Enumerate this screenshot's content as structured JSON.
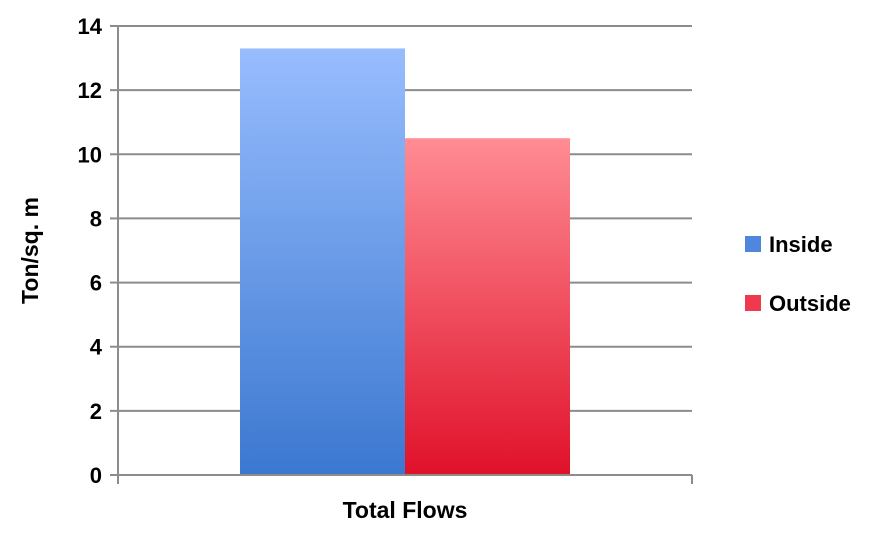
{
  "chart_data": {
    "type": "bar",
    "title": "",
    "xlabel": "",
    "ylabel": "Ton/sq. m",
    "categories": [
      "Total Flows"
    ],
    "ylim": [
      0,
      14
    ],
    "yticks": [
      0,
      2,
      4,
      6,
      8,
      10,
      12,
      14
    ],
    "grid": true,
    "legend": "right",
    "series": [
      {
        "name": "Inside",
        "values": [
          13.3
        ],
        "color_top": "#98BDFE",
        "color_bottom": "#3B78D0",
        "legend_color": "#4F86DE"
      },
      {
        "name": "Outside",
        "values": [
          10.5
        ],
        "color_top": "#FF8C94",
        "color_bottom": "#E0112A",
        "legend_color": "#EE3A4C"
      }
    ]
  }
}
